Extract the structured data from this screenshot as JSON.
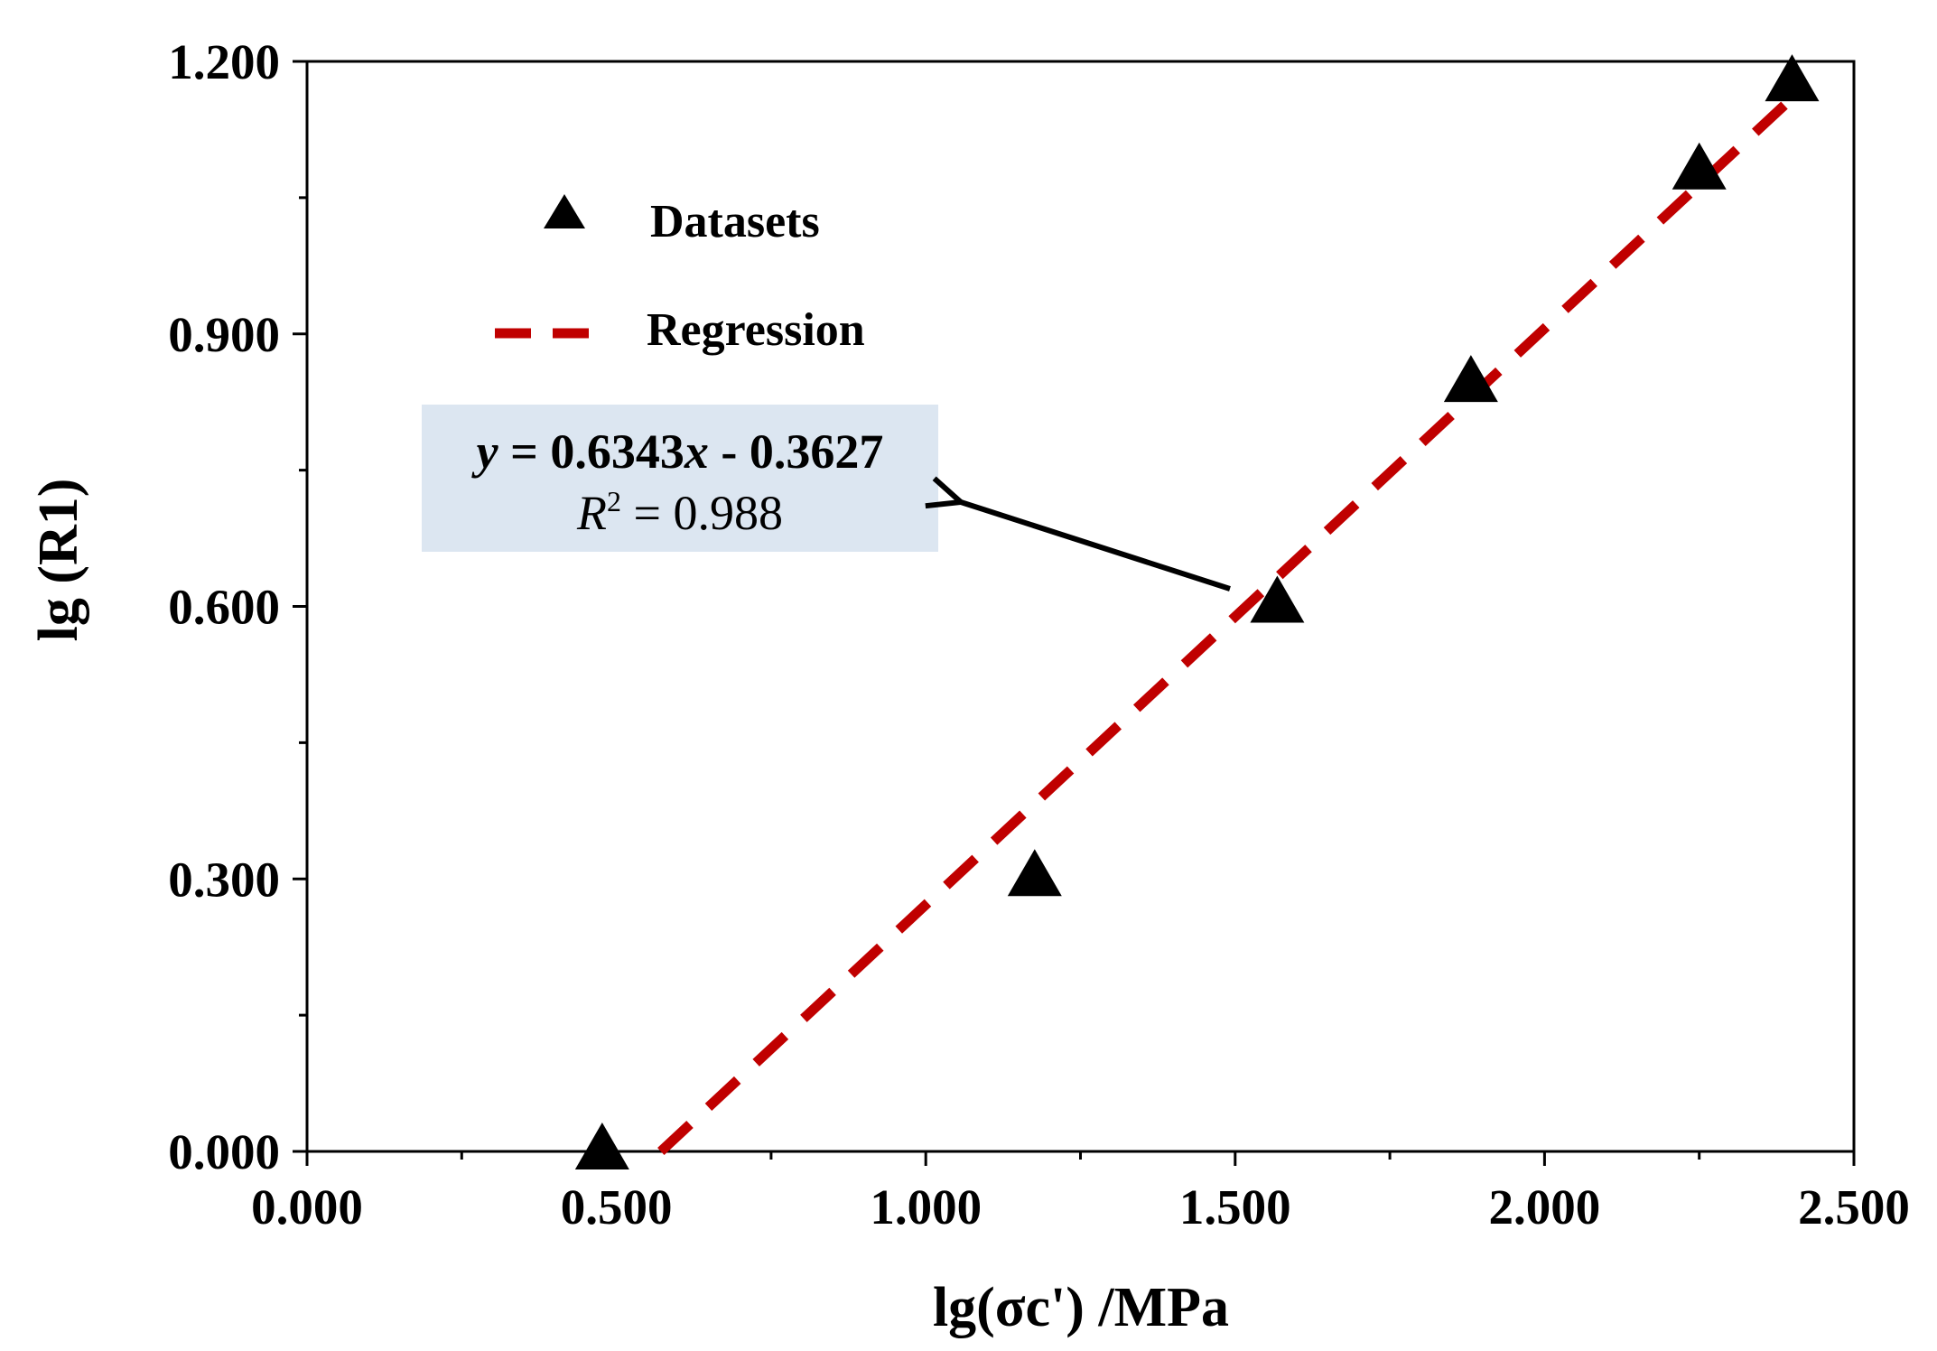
{
  "chart_data": {
    "type": "scatter",
    "title": "",
    "xlabel": "lg(σc') /MPa",
    "ylabel": "lg (R1)",
    "xlim": [
      0,
      2.5
    ],
    "ylim": [
      0,
      1.2
    ],
    "x_ticks": [
      "0.000",
      "0.500",
      "1.000",
      "1.500",
      "2.000",
      "2.500"
    ],
    "y_ticks": [
      "0.000",
      "0.300",
      "0.600",
      "0.900",
      "1.200"
    ],
    "grid": false,
    "legend_position": "top-left",
    "series": [
      {
        "name": "Datasets",
        "marker": "triangle",
        "color": "#000000",
        "points": [
          {
            "x": 0.477,
            "y": 0.0
          },
          {
            "x": 1.176,
            "y": 0.301
          },
          {
            "x": 1.568,
            "y": 0.602
          },
          {
            "x": 1.881,
            "y": 0.845
          },
          {
            "x": 2.25,
            "y": 1.079
          },
          {
            "x": 2.4,
            "y": 1.176
          }
        ]
      },
      {
        "name": "Regression",
        "type": "line",
        "style": "dashed",
        "color": "#c00000",
        "slope": 0.6343,
        "intercept": -0.3627,
        "x_range": [
          0.5718,
          2.4
        ]
      }
    ],
    "annotation": {
      "equation_prefix": "y",
      "equation_body": " = 0.6343",
      "equation_var": "x",
      "equation_suffix": " - 0.3627",
      "r2_label": "R",
      "r2_sup": "2",
      "r2_value": " = 0.988",
      "box_color": "#dce6f1",
      "arrow_target": "regression line"
    }
  }
}
